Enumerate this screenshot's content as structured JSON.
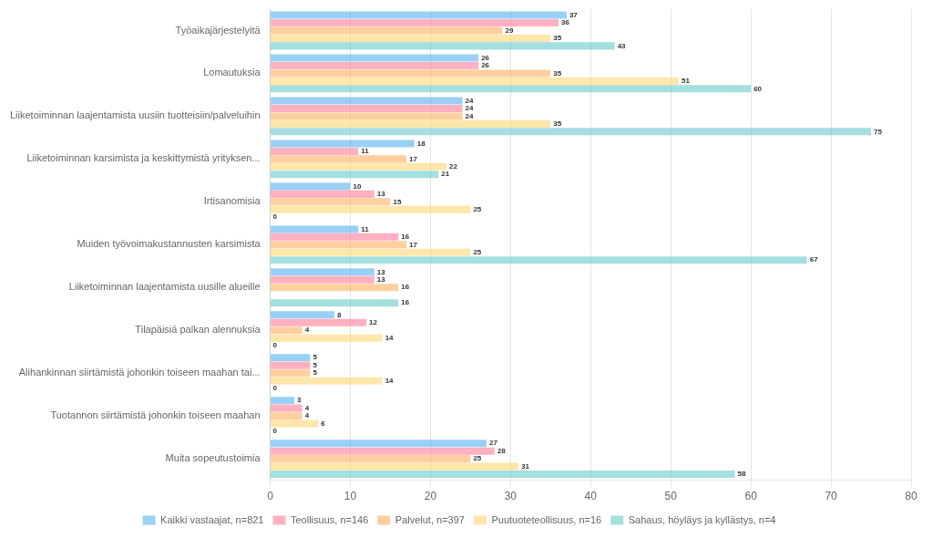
{
  "chart_data": {
    "type": "bar",
    "orientation": "horizontal",
    "categories": [
      "Työaikajärjestelyitä",
      "Lomautuksia",
      "Liiketoiminnan laajentamista uusiin tuotteisiin/palveluihin",
      "Liiketoiminnan karsimista ja keskittymistä yrityksen...",
      "Irtisanomisia",
      "Muiden työvoimakustannusten karsimista",
      "Liiketoiminnan laajentamista uusille alueille",
      "Tilapäisiä palkan alennuksia",
      "Alihankinnan siirtämistä johonkin toiseen maahan tai...",
      "Tuotannon siirtämistä johonkin toiseen maahan",
      "Muita sopeutustoimia"
    ],
    "series": [
      {
        "name": "Kaikki vastaajat, n=821",
        "values": [
          37,
          26,
          24,
          18,
          10,
          11,
          13,
          8,
          5,
          3,
          27
        ]
      },
      {
        "name": "Teollisuus, n=146",
        "values": [
          36,
          26,
          24,
          11,
          13,
          16,
          13,
          12,
          5,
          4,
          28
        ]
      },
      {
        "name": "Palvelut, n=397",
        "values": [
          29,
          35,
          24,
          17,
          15,
          17,
          16,
          4,
          5,
          4,
          25
        ]
      },
      {
        "name": "Puutuoteteollisuus, n=16",
        "values": [
          35,
          51,
          35,
          22,
          25,
          25,
          0,
          14,
          14,
          6,
          31
        ],
        "value_labels": [
          "35",
          "51",
          "35",
          "22",
          "25",
          "25",
          null,
          "14",
          "14",
          "6",
          "31"
        ]
      },
      {
        "name": "Sahaus, höyläys ja kyllästys, n=4",
        "values": [
          43,
          60,
          75,
          21,
          0,
          67,
          16,
          0,
          0,
          0,
          58
        ]
      }
    ],
    "xlim": [
      0,
      80
    ],
    "xticks": [
      0,
      10,
      20,
      30,
      40,
      50,
      60,
      70,
      80
    ],
    "grid": true,
    "legend": "bottom",
    "data_labels": true
  }
}
